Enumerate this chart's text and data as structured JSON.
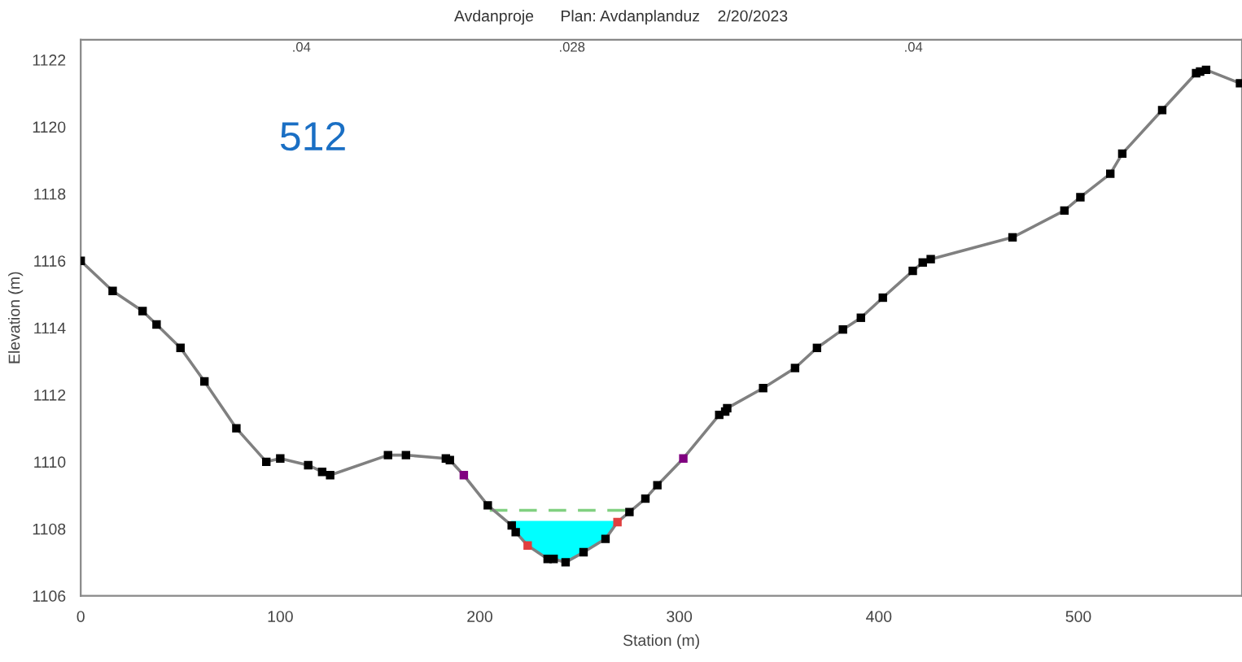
{
  "chart_data": {
    "type": "line",
    "title": "Avdanproje      Plan: Avdanplanduz    2/20/2023",
    "xlabel": "Station (m)",
    "ylabel": "Elevation (m)",
    "xlim": [
      0,
      582
    ],
    "ylim": [
      1106,
      1122.6
    ],
    "xticks": [
      0,
      100,
      200,
      300,
      400,
      500
    ],
    "yticks": [
      1106,
      1108,
      1110,
      1112,
      1114,
      1116,
      1118,
      1120,
      1122
    ],
    "grid": false,
    "legend": false,
    "annotations": [
      "512",
      ".04",
      ".028",
      ".04"
    ],
    "series": [
      {
        "type": "area",
        "color": "#00ffff",
        "x": [
          216,
          269
        ],
        "values": [
          1108.2,
          1108.2
        ]
      },
      {
        "type": "line",
        "color": "#80d080",
        "line_style": "dashed",
        "marker": "none",
        "x": [
          205,
          276
        ],
        "values": [
          1108.55,
          1108.55
        ]
      },
      {
        "color": "#808080",
        "marker": "square",
        "x": [
          0,
          16,
          31,
          38,
          50,
          62,
          78,
          93,
          100,
          114,
          121,
          125,
          154,
          163,
          183,
          185,
          192,
          204,
          216,
          218,
          224,
          234,
          237,
          243,
          252,
          263,
          269,
          275,
          283,
          289,
          302,
          320,
          323,
          324,
          342,
          358,
          369,
          382,
          391,
          402,
          417,
          422,
          426,
          467,
          493,
          501,
          516,
          522,
          542,
          559,
          561,
          564,
          581
        ],
        "values": [
          1116,
          1115.1,
          1114.5,
          1114.1,
          1113.4,
          1112.4,
          1111.0,
          1110.0,
          1110.1,
          1109.9,
          1109.7,
          1109.6,
          1110.2,
          1110.2,
          1110.1,
          1110.05,
          1109.6,
          1108.7,
          1108.1,
          1107.9,
          1107.5,
          1107.1,
          1107.1,
          1107.0,
          1107.3,
          1107.7,
          1108.2,
          1108.5,
          1108.9,
          1109.3,
          1110.1,
          1111.4,
          1111.5,
          1111.6,
          1112.2,
          1112.8,
          1113.4,
          1113.95,
          1114.3,
          1114.9,
          1115.7,
          1115.95,
          1116.05,
          1116.7,
          1117.5,
          1117.9,
          1118.6,
          1119.2,
          1120.5,
          1121.6,
          1121.65,
          1121.7,
          1121.3
        ],
        "colors": [
          "#000000",
          "#000000",
          "#000000",
          "#000000",
          "#000000",
          "#000000",
          "#000000",
          "#000000",
          "#000000",
          "#000000",
          "#000000",
          "#000000",
          "#000000",
          "#000000",
          "#000000",
          "#000000",
          "#800080",
          "#000000",
          "#000000",
          "#000000",
          "#e04040",
          "#000000",
          "#000000",
          "#000000",
          "#000000",
          "#000000",
          "#e04040",
          "#000000",
          "#000000",
          "#000000",
          "#800080",
          "#000000",
          "#000000",
          "#000000",
          "#000000",
          "#000000",
          "#000000",
          "#000000",
          "#000000",
          "#000000",
          "#000000",
          "#000000",
          "#000000",
          "#000000",
          "#000000",
          "#000000",
          "#000000",
          "#000000",
          "#000000",
          "#000000",
          "#000000",
          "#000000",
          "#000000"
        ]
      }
    ]
  }
}
